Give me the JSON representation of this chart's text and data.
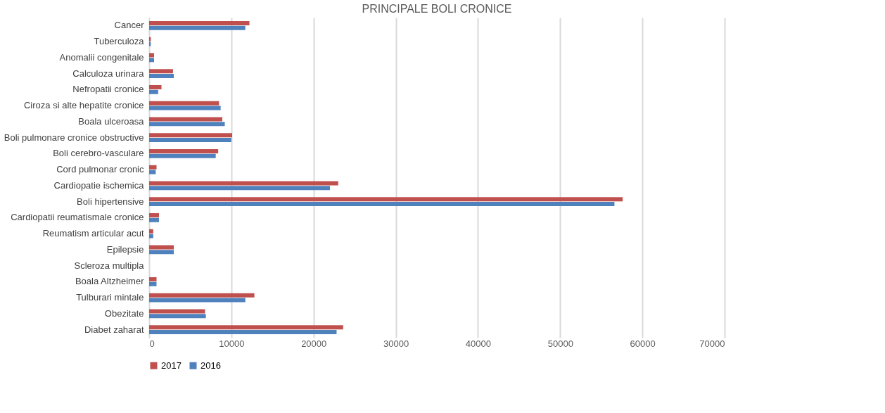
{
  "chart_data": {
    "type": "bar",
    "orientation": "horizontal",
    "title": "PRINCIPALE BOLI CRONICE",
    "categories": [
      "Cancer",
      "Tuberculoza",
      "Anomalii congenitale",
      "Calculoza urinara",
      "Nefropatii cronice",
      "Ciroza si alte hepatite cronice",
      "Boala ulceroasa",
      "Boli pulmonare cronice obstructive",
      "Boli cerebro-vasculare",
      "Cord pulmonar cronic",
      "Cardiopatie ischemica",
      "Boli hipertensive",
      "Cardiopatii reumatismale cronice",
      "Reumatism articular acut",
      "Epilepsie",
      "Scleroza multipla",
      "Boala Altzheimer",
      "Tulburari mintale",
      "Obezitate",
      "Diabet zaharat"
    ],
    "series": [
      {
        "name": "2017",
        "color": "#c0504d",
        "values": [
          12200,
          200,
          600,
          2900,
          1500,
          8500,
          8900,
          10100,
          8400,
          900,
          23000,
          57600,
          1200,
          500,
          3000,
          0,
          900,
          12800,
          6800,
          23600
        ]
      },
      {
        "name": "2016",
        "color": "#4f81bd",
        "values": [
          11700,
          200,
          600,
          3000,
          1100,
          8700,
          9200,
          10000,
          8100,
          800,
          22000,
          56600,
          1200,
          500,
          3000,
          0,
          900,
          11700,
          6900,
          22800
        ]
      }
    ],
    "xlim": [
      0,
      70000
    ],
    "xticks": [
      0,
      10000,
      20000,
      30000,
      40000,
      50000,
      60000,
      70000
    ],
    "grid": "x",
    "legend": "bottom"
  }
}
